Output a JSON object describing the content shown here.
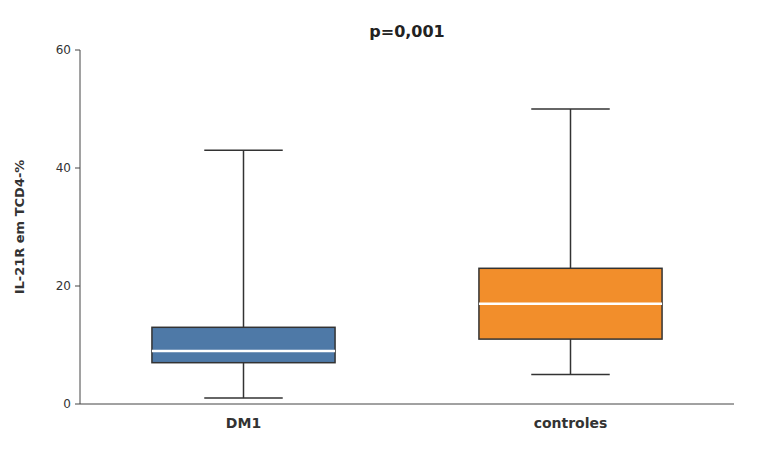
{
  "chart_data": {
    "type": "box",
    "categories": [
      "DM1",
      "controles"
    ],
    "values": [
      {
        "whisker_low": 1,
        "q1": 7,
        "median": 9,
        "q3": 13,
        "whisker_high": 43
      },
      {
        "whisker_low": 5,
        "q1": 11,
        "median": 17,
        "q3": 23,
        "whisker_high": 50
      }
    ],
    "y_label": "IL-21R em TCD4-%",
    "annotation": "p=0,001",
    "ylim": [
      0,
      60
    ],
    "yticks": [
      0,
      20,
      40,
      60
    ],
    "grid": false
  }
}
